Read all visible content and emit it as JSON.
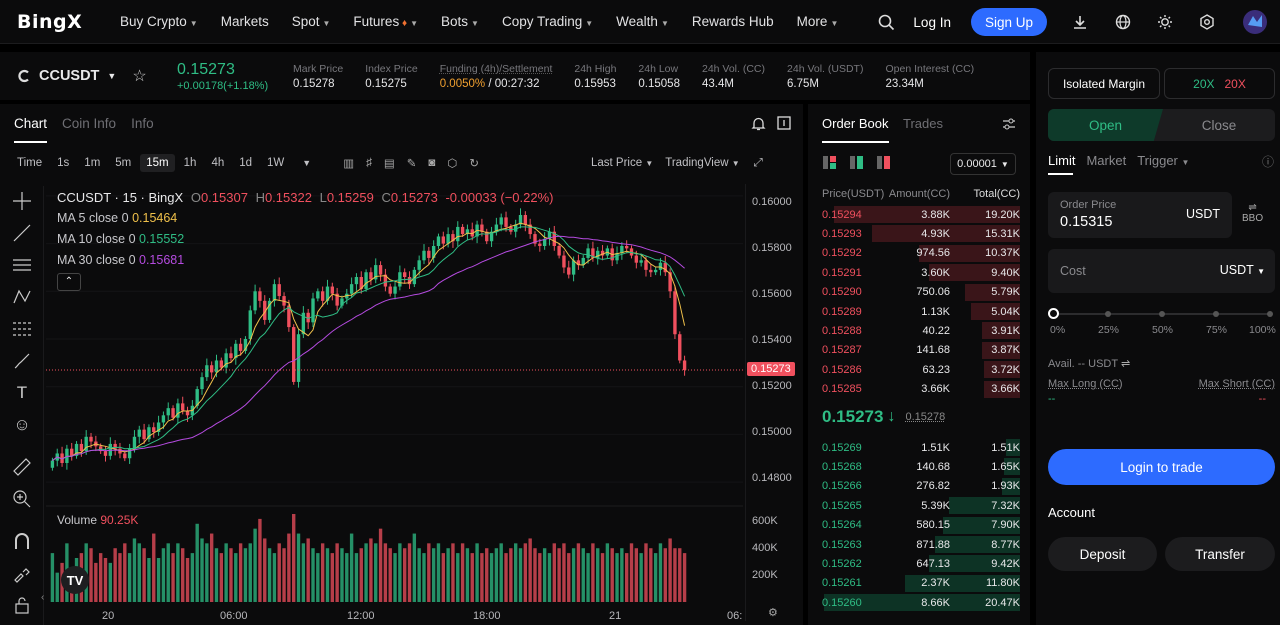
{
  "nav": {
    "logo": "BingX",
    "items": [
      "Buy Crypto",
      "Markets",
      "Spot",
      "Futures",
      "Bots",
      "Copy Trading",
      "Wealth",
      "Rewards Hub",
      "More"
    ],
    "login": "Log In",
    "signup": "Sign Up"
  },
  "ticker": {
    "symbol": "CCUSDT",
    "last": "0.15273",
    "change": "+0.00178(+1.18%)",
    "stats": [
      {
        "label": "Mark Price",
        "value": "0.15278"
      },
      {
        "label": "Index Price",
        "value": "0.15275"
      },
      {
        "label": "Funding (4h)/Settlement",
        "value_a": "0.0050%",
        "value_b": " / 00:27:32"
      },
      {
        "label": "24h High",
        "value": "0.15953"
      },
      {
        "label": "24h Low",
        "value": "0.15058"
      },
      {
        "label": "24h Vol. (CC)",
        "value": "43.4M"
      },
      {
        "label": "24h Vol. (USDT)",
        "value": "6.75M"
      },
      {
        "label": "Open Interest (CC)",
        "value": "23.34M"
      }
    ]
  },
  "chart": {
    "tabs": [
      "Chart",
      "Coin Info",
      "Info"
    ],
    "timeframes": [
      "Time",
      "1s",
      "1m",
      "5m",
      "15m",
      "1h",
      "4h",
      "1d",
      "1W"
    ],
    "active_tf": "15m",
    "last_price_sel": "Last Price",
    "view_sel": "TradingView",
    "legend": {
      "title": "CCUSDT · 15 · BingX",
      "o": "0.15307",
      "h": "0.15322",
      "l": "0.15259",
      "c": "0.15273",
      "chg": "-0.00033 (−0.22%)",
      "ma5_label": "MA 5 close 0",
      "ma5": "0.15464",
      "ma10_label": "MA 10 close 0",
      "ma10": "0.15552",
      "ma30_label": "MA 30 close 0",
      "ma30": "0.15681"
    },
    "volume_label": "Volume",
    "volume_val": "90.25K",
    "price_ticks": [
      "0.16000",
      "0.15800",
      "0.15600",
      "0.15400",
      "0.15200",
      "0.15000",
      "0.14800"
    ],
    "current_price_tag": "0.15273",
    "vol_ticks": [
      "600K",
      "400K",
      "200K"
    ],
    "time_ticks": [
      "20",
      "06:00",
      "12:00",
      "18:00",
      "21",
      "06:"
    ]
  },
  "chart_data": {
    "type": "candlestick",
    "ylim": [
      0.1475,
      0.1605
    ],
    "closes": [
      0.1489,
      0.1492,
      0.1488,
      0.1494,
      0.1491,
      0.1496,
      0.1493,
      0.1499,
      0.1497,
      0.1495,
      0.1493,
      0.1491,
      0.1496,
      0.1494,
      0.1492,
      0.149,
      0.1494,
      0.1499,
      0.1502,
      0.1498,
      0.1503,
      0.1501,
      0.1505,
      0.1508,
      0.1511,
      0.1507,
      0.1513,
      0.151,
      0.1508,
      0.1512,
      0.1519,
      0.1524,
      0.1529,
      0.1526,
      0.1531,
      0.1528,
      0.1534,
      0.1532,
      0.1538,
      0.1535,
      0.154,
      0.1552,
      0.156,
      0.1556,
      0.1548,
      0.1556,
      0.1563,
      0.1558,
      0.1554,
      0.1545,
      0.1522,
      0.1542,
      0.1551,
      0.1547,
      0.1557,
      0.156,
      0.1556,
      0.1562,
      0.1559,
      0.1554,
      0.1557,
      0.1559,
      0.1563,
      0.1566,
      0.1561,
      0.1568,
      0.1565,
      0.1571,
      0.1567,
      0.1562,
      0.1559,
      0.1562,
      0.1568,
      0.1566,
      0.1563,
      0.1569,
      0.1573,
      0.1577,
      0.1574,
      0.1579,
      0.1583,
      0.158,
      0.1584,
      0.1581,
      0.1587,
      0.1584,
      0.1586,
      0.1583,
      0.1588,
      0.1585,
      0.1581,
      0.1585,
      0.1588,
      0.1591,
      0.1587,
      0.1585,
      0.1588,
      0.1592,
      0.1588,
      0.1584,
      0.158,
      0.1579,
      0.1582,
      0.1585,
      0.1579,
      0.1575,
      0.157,
      0.1567,
      0.1573,
      0.1571,
      0.1574,
      0.1578,
      0.1574,
      0.1577,
      0.1575,
      0.1578,
      0.1573,
      0.1576,
      0.1579,
      0.1578,
      0.1575,
      0.1572,
      0.1573,
      0.1569,
      0.1568,
      0.1569,
      0.1572,
      0.1568,
      0.156,
      0.1542,
      0.1531,
      0.1527
    ],
    "volumes": [
      0.5,
      0.3,
      0.4,
      0.6,
      0.35,
      0.45,
      0.5,
      0.6,
      0.55,
      0.4,
      0.5,
      0.45,
      0.4,
      0.55,
      0.5,
      0.6,
      0.5,
      0.65,
      0.6,
      0.55,
      0.45,
      0.7,
      0.45,
      0.55,
      0.6,
      0.5,
      0.6,
      0.55,
      0.45,
      0.5,
      0.8,
      0.65,
      0.6,
      0.7,
      0.55,
      0.5,
      0.6,
      0.55,
      0.5,
      0.6,
      0.55,
      0.6,
      0.75,
      0.85,
      0.65,
      0.55,
      0.5,
      0.6,
      0.55,
      0.7,
      0.9,
      0.7,
      0.6,
      0.65,
      0.55,
      0.5,
      0.6,
      0.55,
      0.5,
      0.6,
      0.55,
      0.5,
      0.7,
      0.5,
      0.55,
      0.6,
      0.65,
      0.6,
      0.75,
      0.6,
      0.55,
      0.5,
      0.6,
      0.55,
      0.6,
      0.7,
      0.55,
      0.5,
      0.6,
      0.55,
      0.6,
      0.5,
      0.55,
      0.6,
      0.5,
      0.6,
      0.55,
      0.5,
      0.6,
      0.5,
      0.55,
      0.5,
      0.55,
      0.6,
      0.5,
      0.55,
      0.6,
      0.55,
      0.6,
      0.65,
      0.55,
      0.5,
      0.55,
      0.5,
      0.6,
      0.55,
      0.6,
      0.5,
      0.55,
      0.6,
      0.55,
      0.5,
      0.6,
      0.55,
      0.5,
      0.6,
      0.55,
      0.5,
      0.55,
      0.5,
      0.6,
      0.55,
      0.5,
      0.6,
      0.55,
      0.5,
      0.6,
      0.55,
      0.65,
      0.55,
      0.55,
      0.5
    ]
  },
  "orderbook": {
    "tabs": [
      "Order Book",
      "Trades"
    ],
    "precision": "0.00001",
    "headers": [
      "Price(USDT)",
      "Amount(CC)",
      "Total(CC)"
    ],
    "asks": [
      [
        "0.15294",
        "3.88K",
        "19.20K"
      ],
      [
        "0.15293",
        "4.93K",
        "15.31K"
      ],
      [
        "0.15292",
        "974.56",
        "10.37K"
      ],
      [
        "0.15291",
        "3.60K",
        "9.40K"
      ],
      [
        "0.15290",
        "750.06",
        "5.79K"
      ],
      [
        "0.15289",
        "1.13K",
        "5.04K"
      ],
      [
        "0.15288",
        "40.22",
        "3.91K"
      ],
      [
        "0.15287",
        "141.68",
        "3.87K"
      ],
      [
        "0.15286",
        "63.23",
        "3.72K"
      ],
      [
        "0.15285",
        "3.66K",
        "3.66K"
      ]
    ],
    "ask_depth": [
      0.94,
      0.75,
      0.51,
      0.46,
      0.28,
      0.25,
      0.19,
      0.19,
      0.18,
      0.18
    ],
    "mid_price": "0.15273",
    "mid_arrow": "↓",
    "mark": "0.15278",
    "bids": [
      [
        "0.15269",
        "1.51K",
        "1.51K"
      ],
      [
        "0.15268",
        "140.68",
        "1.65K"
      ],
      [
        "0.15266",
        "276.82",
        "1.93K"
      ],
      [
        "0.15265",
        "5.39K",
        "7.32K"
      ],
      [
        "0.15264",
        "580.15",
        "7.90K"
      ],
      [
        "0.15263",
        "871.88",
        "8.77K"
      ],
      [
        "0.15262",
        "647.13",
        "9.42K"
      ],
      [
        "0.15261",
        "2.37K",
        "11.80K"
      ],
      [
        "0.15260",
        "8.66K",
        "20.47K"
      ]
    ],
    "bid_depth": [
      0.07,
      0.08,
      0.09,
      0.36,
      0.39,
      0.43,
      0.46,
      0.58,
      0.99
    ]
  },
  "trade": {
    "isolated": "Isolated Margin",
    "lev_long": "20X",
    "lev_short": "20X",
    "open": "Open",
    "close": "Close",
    "types": [
      "Limit",
      "Market",
      "Trigger"
    ],
    "order_price_label": "Order Price",
    "order_price": "0.15315",
    "quote": "USDT",
    "bbo": "BBO",
    "cost_label": "Cost",
    "cost_unit": "USDT",
    "pcts": [
      "0%",
      "25%",
      "50%",
      "75%",
      "100%"
    ],
    "avail": "Avail. -- USDT",
    "max_long": "Max Long (CC)",
    "max_short": "Max Short (CC)",
    "dash": "--",
    "login_btn": "Login to trade",
    "account": "Account",
    "deposit": "Deposit",
    "transfer": "Transfer"
  },
  "colors": {
    "up": "#2fbd85",
    "down": "#f0505e",
    "accent": "#2d6bff",
    "ma5": "#f0c14b",
    "ma10": "#2fbd85",
    "ma30": "#b54be0"
  }
}
